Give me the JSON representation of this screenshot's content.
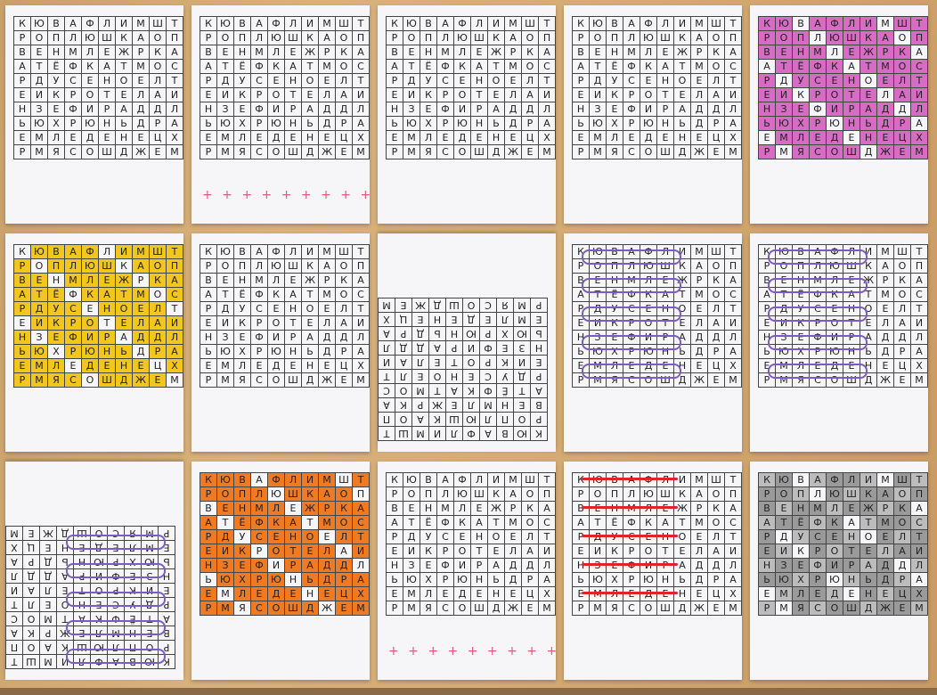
{
  "grid_rows": [
    [
      "К",
      "Ю",
      "В",
      "А",
      "Ф",
      "Л",
      "И",
      "М",
      "Ш",
      "Т"
    ],
    [
      "Р",
      "О",
      "П",
      "Л",
      "Ю",
      "Ш",
      "К",
      "А",
      "О",
      "П"
    ],
    [
      "В",
      "Е",
      "Н",
      "М",
      "Л",
      "Е",
      "Ж",
      "Р",
      "К",
      "А"
    ],
    [
      "А",
      "Т",
      "Ё",
      "Ф",
      "К",
      "А",
      "Т",
      "М",
      "О",
      "С"
    ],
    [
      "Р",
      "Д",
      "У",
      "С",
      "Е",
      "Н",
      "О",
      "Е",
      "Л",
      "Т"
    ],
    [
      "Е",
      "И",
      "К",
      "Р",
      "О",
      "Т",
      "Е",
      "Л",
      "А",
      "И"
    ],
    [
      "Н",
      "З",
      "Е",
      "Ф",
      "И",
      "Р",
      "А",
      "Д",
      "Д",
      "Л"
    ],
    [
      "Ь",
      "Ю",
      "Х",
      "Р",
      "Ю",
      "Н",
      "Ь",
      "Д",
      "Р",
      "А"
    ],
    [
      "Е",
      "М",
      "Л",
      "Е",
      "Д",
      "Е",
      "Н",
      "Е",
      "Ц",
      "Х"
    ],
    [
      "Р",
      "М",
      "Я",
      "С",
      "О",
      "Ш",
      "Д",
      "Ж",
      "Е",
      "М"
    ]
  ],
  "tally_marks": "+ + + + + + + + + + +",
  "fill_colors": {
    "pink": "#d86bc4",
    "yellow": "#f2c61c",
    "orange": "#f07a22",
    "gray": "#9a9a9a",
    "purple": "#7a5bc8",
    "red": "#e0242a"
  }
}
